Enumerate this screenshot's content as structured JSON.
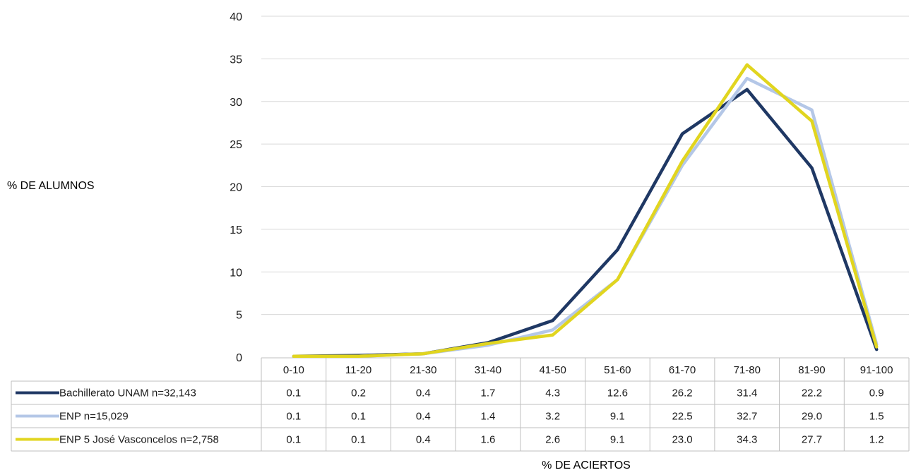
{
  "chart_data": {
    "type": "line",
    "title": "",
    "xlabel": "% DE ACIERTOS",
    "ylabel": "% DE ALUMNOS",
    "ylim": [
      0,
      40
    ],
    "yticks": [
      "0",
      "5",
      "10",
      "15",
      "20",
      "25",
      "30",
      "35",
      "40"
    ],
    "grid": true,
    "legend": "data-table-below",
    "categories": [
      "0-10",
      "11-20",
      "21-30",
      "31-40",
      "41-50",
      "51-60",
      "61-70",
      "71-80",
      "81-90",
      "91-100"
    ],
    "series": [
      {
        "name": "Bachillerato UNAM n=32,143",
        "color": "#1f3864",
        "values": [
          0.1,
          0.2,
          0.4,
          1.7,
          4.3,
          12.6,
          26.2,
          31.4,
          22.2,
          0.9
        ],
        "labels": [
          "0.1",
          "0.2",
          "0.4",
          "1.7",
          "4.3",
          "12.6",
          "26.2",
          "31.4",
          "22.2",
          "0.9"
        ]
      },
      {
        "name": "ENP  n=15,029",
        "color": "#b4c7e7",
        "values": [
          0.1,
          0.1,
          0.4,
          1.4,
          3.2,
          9.1,
          22.5,
          32.7,
          29.0,
          1.5
        ],
        "labels": [
          "0.1",
          "0.1",
          "0.4",
          "1.4",
          "3.2",
          "9.1",
          "22.5",
          "32.7",
          "29.0",
          "1.5"
        ]
      },
      {
        "name": "ENP 5 José Vasconcelos n=2,758",
        "color": "#e1d51f",
        "values": [
          0.1,
          0.1,
          0.4,
          1.6,
          2.6,
          9.1,
          23.0,
          34.3,
          27.7,
          1.2
        ],
        "labels": [
          "0.1",
          "0.1",
          "0.4",
          "1.6",
          "2.6",
          "9.1",
          "23.0",
          "34.3",
          "27.7",
          "1.2"
        ]
      }
    ]
  }
}
